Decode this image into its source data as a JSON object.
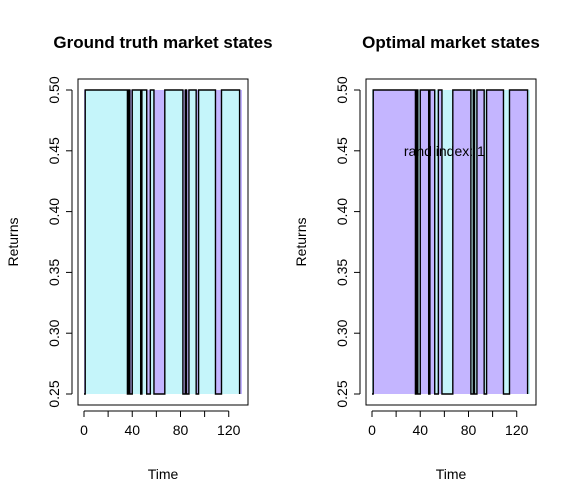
{
  "chart_data": [
    {
      "type": "area",
      "title": "Ground truth market states",
      "xlabel": "Time",
      "ylabel": "Returns",
      "xlim": [
        0,
        131
      ],
      "ylim": [
        0.25,
        0.5
      ],
      "xticks": [
        0,
        40,
        80,
        120
      ],
      "yticks": [
        0.25,
        0.3,
        0.35,
        0.4,
        0.45,
        0.5
      ],
      "fill_color": "#c5f5fa",
      "background_color": "#c4b5ff",
      "line_color": "#000000",
      "annotation": "",
      "series": [
        {
          "values": [
            0.25,
            0.5,
            0.5,
            0.25,
            0.5,
            0.25,
            0.5,
            0.25,
            0.5,
            0.25,
            0.5,
            0.25,
            0.5,
            0.25,
            0.5,
            0.25,
            0.5,
            0.25,
            0.5,
            0.25,
            0.5,
            0.25
          ],
          "x": [
            0,
            1,
            35,
            36,
            37,
            38,
            40,
            47,
            48,
            52,
            55,
            58,
            67,
            82,
            84,
            85,
            87,
            93,
            95,
            109,
            114,
            129
          ]
        }
      ]
    },
    {
      "type": "area",
      "title": "Optimal market states",
      "xlabel": "Time",
      "ylabel": "Returns",
      "xlim": [
        0,
        131
      ],
      "ylim": [
        0.25,
        0.5
      ],
      "xticks": [
        0,
        40,
        80,
        120
      ],
      "yticks": [
        0.25,
        0.3,
        0.35,
        0.4,
        0.45,
        0.5
      ],
      "fill_color": "#c4b5ff",
      "background_color": "#c5f5fa",
      "line_color": "#000000",
      "annotation": "rand index: 1",
      "annotation_at": [
        60,
        0.45
      ],
      "series": [
        {
          "values": [
            0.25,
            0.5,
            0.5,
            0.25,
            0.5,
            0.25,
            0.5,
            0.25,
            0.5,
            0.25,
            0.5,
            0.25,
            0.5,
            0.25,
            0.5,
            0.25,
            0.5,
            0.25,
            0.5,
            0.25,
            0.5,
            0.25
          ],
          "x": [
            0,
            1,
            35,
            36,
            37,
            38,
            40,
            47,
            48,
            52,
            55,
            58,
            67,
            82,
            84,
            85,
            87,
            93,
            95,
            109,
            114,
            129
          ]
        }
      ]
    }
  ]
}
